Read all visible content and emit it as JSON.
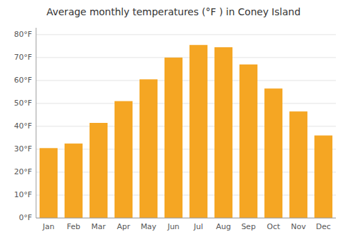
{
  "chart_data": {
    "type": "bar",
    "title": "Average monthly temperatures (°F ) in Coney Island",
    "categories": [
      "Jan",
      "Feb",
      "Mar",
      "Apr",
      "May",
      "Jun",
      "Jul",
      "Aug",
      "Sep",
      "Oct",
      "Nov",
      "Dec"
    ],
    "values": [
      30.5,
      32.5,
      41.5,
      51.0,
      60.5,
      70.0,
      75.5,
      74.5,
      67.0,
      56.5,
      46.5,
      36.0
    ],
    "color": "#F5A623",
    "ylim": [
      0,
      83
    ],
    "yticks": [
      {
        "value": 0,
        "label": "0°F"
      },
      {
        "value": 10,
        "label": "10°F"
      },
      {
        "value": 20,
        "label": "20°F"
      },
      {
        "value": 30,
        "label": "30°F"
      },
      {
        "value": 40,
        "label": "40°F"
      },
      {
        "value": 50,
        "label": "50°F"
      },
      {
        "value": 60,
        "label": "60°F"
      },
      {
        "value": 70,
        "label": "70°F"
      },
      {
        "value": 80,
        "label": "80°F"
      }
    ],
    "grid": true
  }
}
